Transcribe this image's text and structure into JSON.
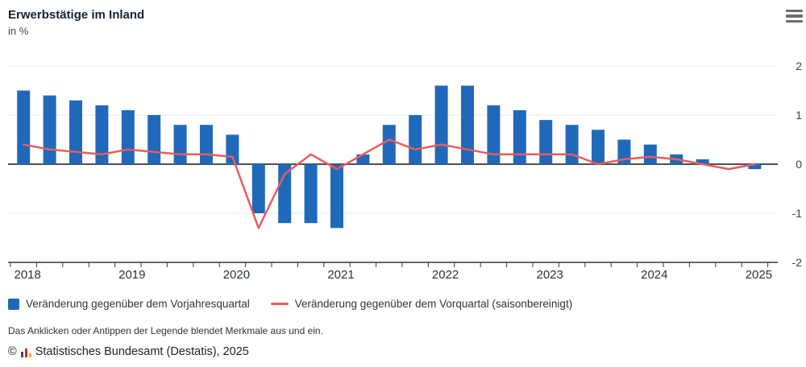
{
  "header": {
    "title": "Erwerbstätige im Inland",
    "subtitle": "in %"
  },
  "menu": {
    "icon": "hamburger-menu-icon"
  },
  "chart_data": {
    "type": "bar+line",
    "title": "Erwerbstätige im Inland",
    "unit": "in %",
    "categories": [
      "2018-Q1",
      "2018-Q2",
      "2018-Q3",
      "2018-Q4",
      "2019-Q1",
      "2019-Q2",
      "2019-Q3",
      "2019-Q4",
      "2020-Q1",
      "2020-Q2",
      "2020-Q3",
      "2020-Q4",
      "2021-Q1",
      "2021-Q2",
      "2021-Q3",
      "2021-Q4",
      "2022-Q1",
      "2022-Q2",
      "2022-Q3",
      "2022-Q4",
      "2023-Q1",
      "2023-Q2",
      "2023-Q3",
      "2023-Q4",
      "2024-Q1",
      "2024-Q2",
      "2024-Q3",
      "2024-Q4",
      "2025-Q1"
    ],
    "series": [
      {
        "name": "Veränderung gegenüber dem Vorjahresquartal",
        "type": "bar",
        "color": "#2069ba",
        "values": [
          1.5,
          1.4,
          1.3,
          1.2,
          1.1,
          1.0,
          0.8,
          0.8,
          0.6,
          -1.0,
          -1.2,
          -1.2,
          -1.3,
          0.2,
          0.8,
          1.0,
          1.6,
          1.6,
          1.2,
          1.1,
          0.9,
          0.8,
          0.7,
          0.5,
          0.4,
          0.2,
          0.1,
          0.0,
          -0.1
        ]
      },
      {
        "name": "Veränderung gegenüber dem Vorquartal (saisonbereinigt)",
        "type": "line",
        "color": "#e95c5e",
        "values": [
          0.4,
          0.3,
          0.25,
          0.2,
          0.3,
          0.25,
          0.2,
          0.2,
          0.15,
          -1.3,
          -0.2,
          0.2,
          -0.1,
          0.2,
          0.5,
          0.3,
          0.4,
          0.3,
          0.2,
          0.2,
          0.2,
          0.2,
          0.0,
          0.1,
          0.15,
          0.1,
          0.0,
          -0.1,
          0.0
        ]
      }
    ],
    "x_year_labels": [
      "2018",
      "2019",
      "2020",
      "2021",
      "2022",
      "2023",
      "2024",
      "2025"
    ],
    "ylim": [
      -2,
      2
    ],
    "y_ticks": [
      2,
      1,
      0,
      -1,
      -2
    ],
    "y_axis_side": "right",
    "grid": true,
    "legend_position": "bottom"
  },
  "footer": {
    "note": "Das Anklicken oder Antippen der Legende blendet Merkmale aus und ein.",
    "copyright_symbol": "©",
    "copyright_text": "Statistisches Bundesamt (Destatis), 2025"
  }
}
